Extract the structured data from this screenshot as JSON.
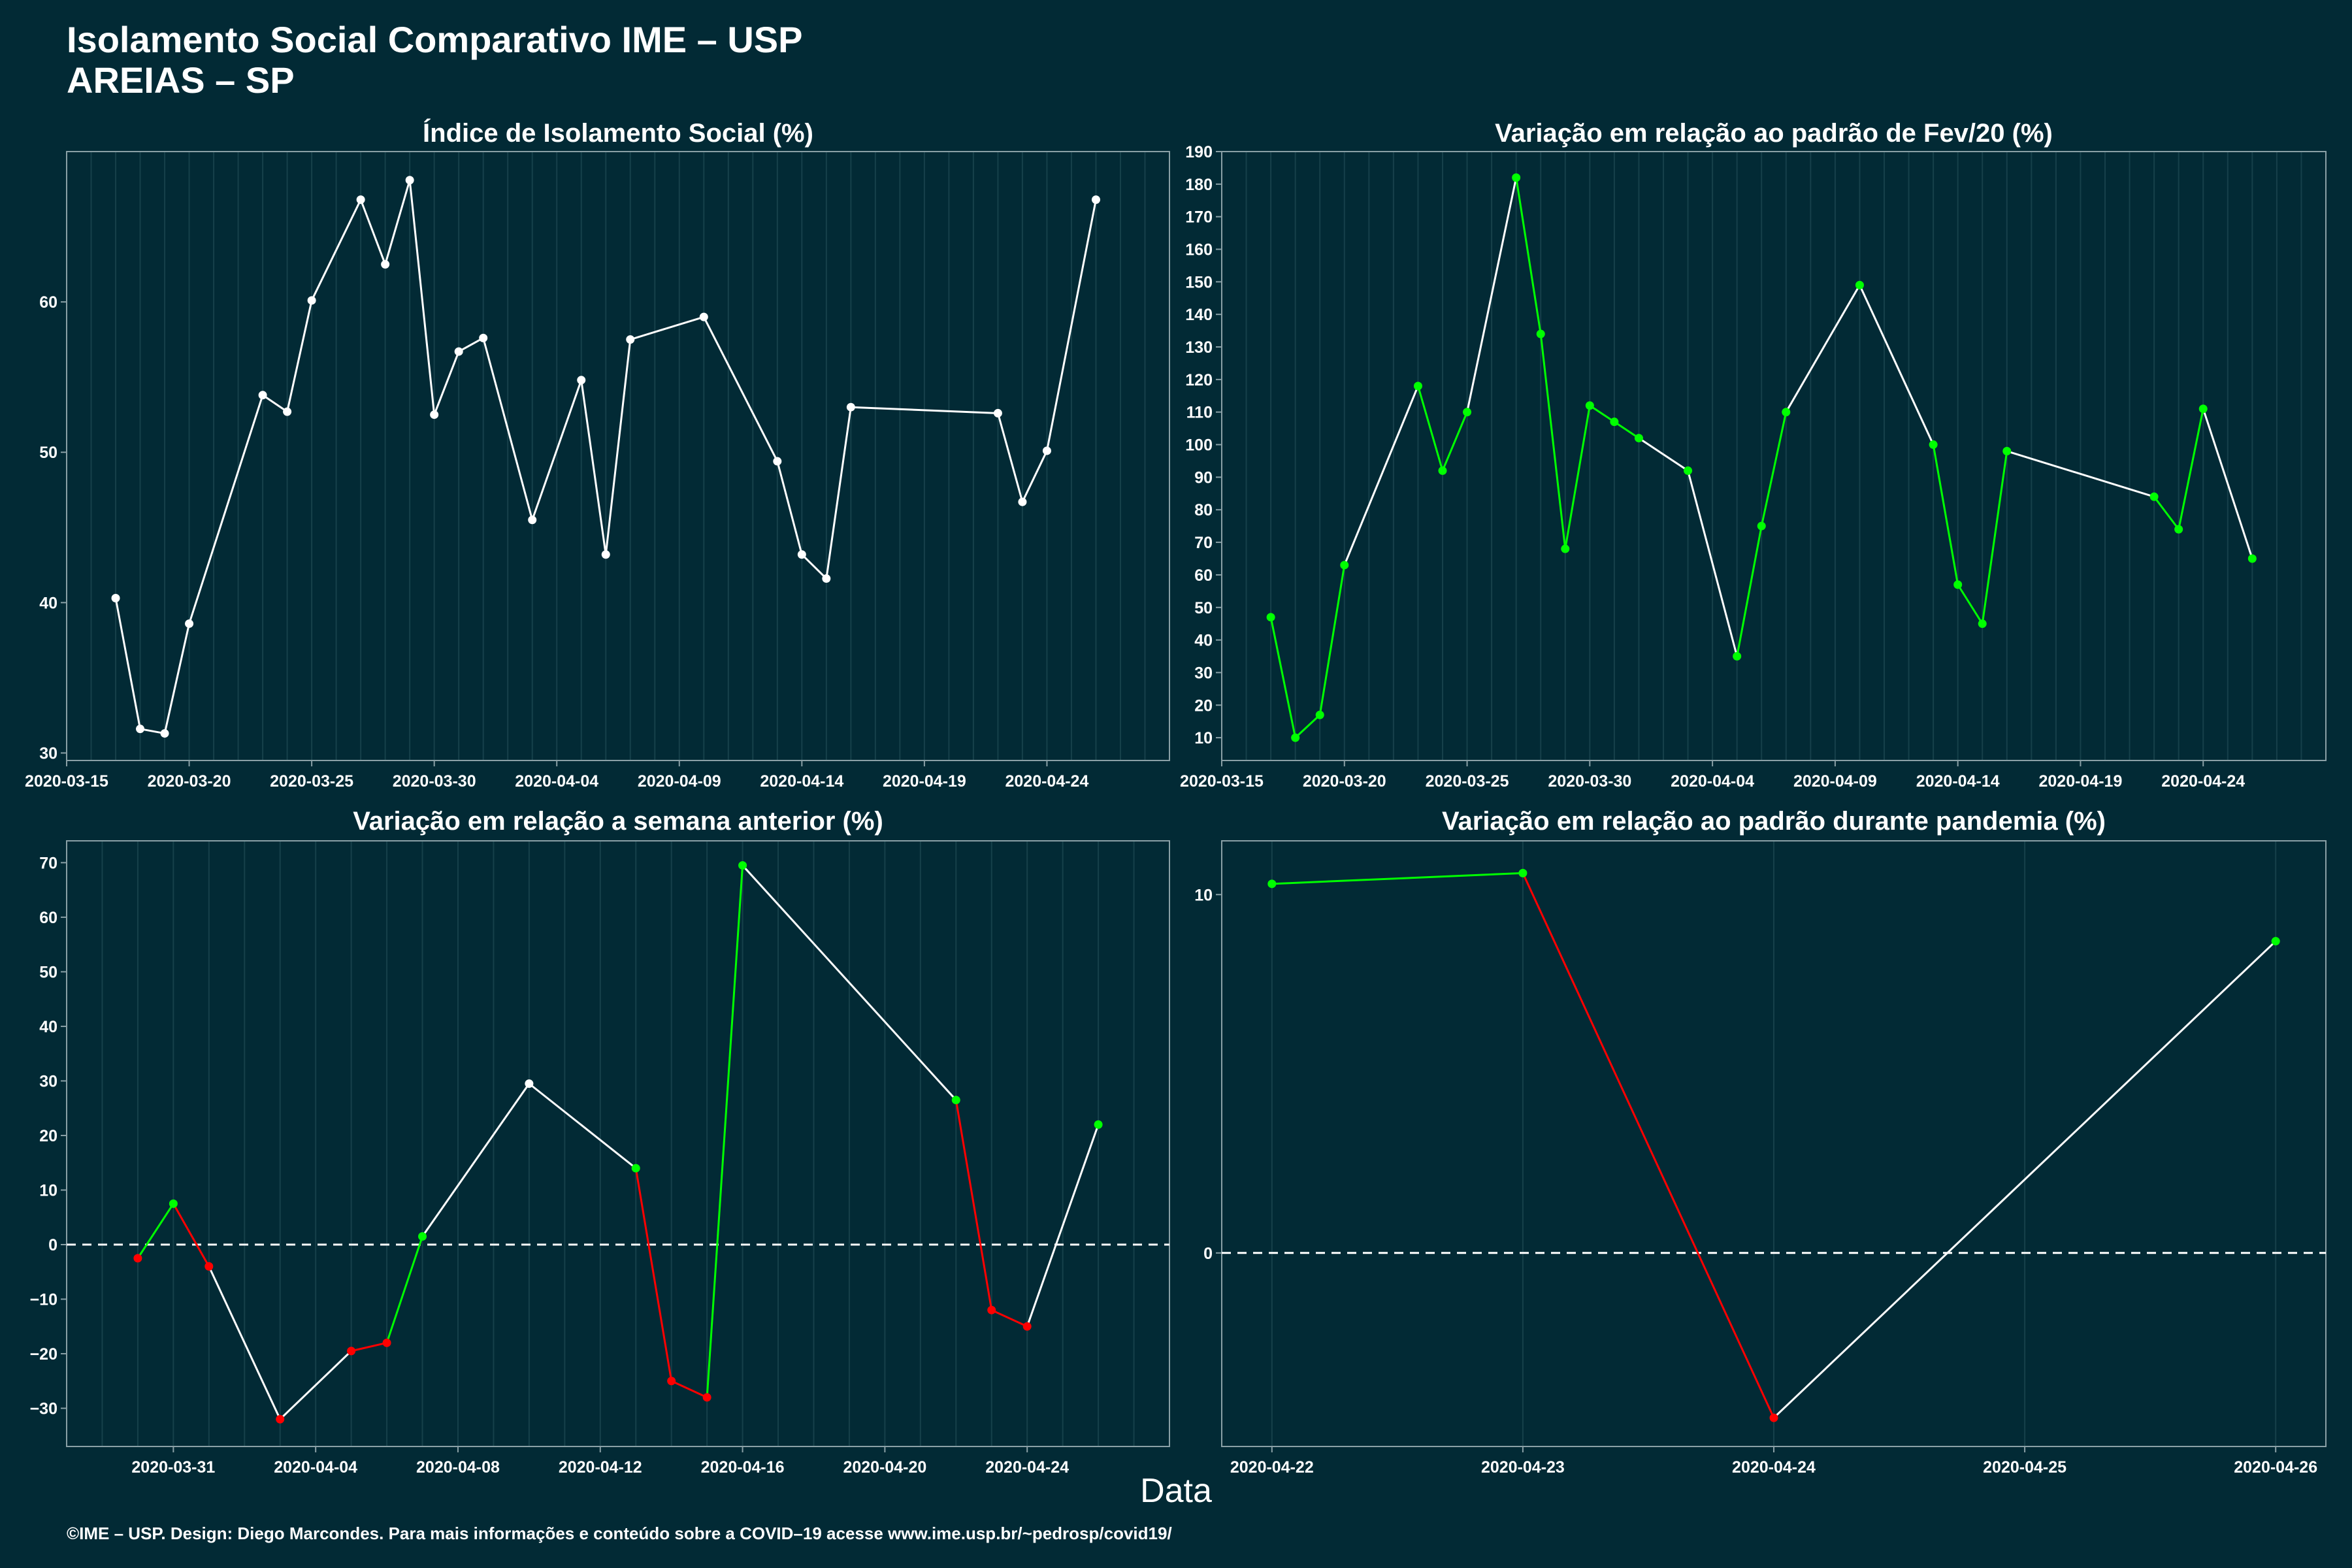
{
  "header": {
    "title_line1": "Isolamento Social Comparativo IME – USP",
    "title_line2": "AREIAS – SP"
  },
  "xaxis_label": "Data",
  "footer": "©IME – USP. Design: Diego Marcondes. Para mais informações e conteúdo sobre a COVID–19 acesse www.ime.usp.br/~pedrosp/covid19/",
  "colors": {
    "background": "#022a35",
    "line": "#ffffff",
    "increase": "#00ff00",
    "decrease": "#ff0000",
    "grid": "#16404a",
    "panel_border": "#8aa0a6"
  },
  "chart_data": [
    {
      "type": "line",
      "title": "Índice de Isolamento Social (%)",
      "xlim": [
        "2020-03-15",
        "2020-04-29"
      ],
      "ylim": [
        29.5,
        70
      ],
      "x_ticks": [
        "2020-03-15",
        "2020-03-20",
        "2020-03-25",
        "2020-03-30",
        "2020-04-04",
        "2020-04-09",
        "2020-04-14",
        "2020-04-19",
        "2020-04-24"
      ],
      "y_ticks": [
        30,
        40,
        50,
        60
      ],
      "grid": true,
      "points": [
        {
          "x": "2020-03-17",
          "y": 40.3,
          "c": "w"
        },
        {
          "x": "2020-03-18",
          "y": 31.6,
          "c": "w"
        },
        {
          "x": "2020-03-19",
          "y": 31.3,
          "c": "w"
        },
        {
          "x": "2020-03-20",
          "y": 38.6,
          "c": "w"
        },
        {
          "x": "2020-03-23",
          "y": 53.8,
          "c": "w"
        },
        {
          "x": "2020-03-24",
          "y": 52.7,
          "c": "w"
        },
        {
          "x": "2020-03-25",
          "y": 60.1,
          "c": "w"
        },
        {
          "x": "2020-03-27",
          "y": 66.8,
          "c": "w"
        },
        {
          "x": "2020-03-28",
          "y": 62.5,
          "c": "w"
        },
        {
          "x": "2020-03-29",
          "y": 68.1,
          "c": "w"
        },
        {
          "x": "2020-03-30",
          "y": 52.5,
          "c": "w"
        },
        {
          "x": "2020-03-31",
          "y": 56.7,
          "c": "w"
        },
        {
          "x": "2020-04-01",
          "y": 57.6,
          "c": "w"
        },
        {
          "x": "2020-04-03",
          "y": 45.5,
          "c": "w"
        },
        {
          "x": "2020-04-05",
          "y": 54.8,
          "c": "w"
        },
        {
          "x": "2020-04-06",
          "y": 43.2,
          "c": "w"
        },
        {
          "x": "2020-04-07",
          "y": 57.5,
          "c": "w"
        },
        {
          "x": "2020-04-10",
          "y": 59.0,
          "c": "w"
        },
        {
          "x": "2020-04-13",
          "y": 49.4,
          "c": "w"
        },
        {
          "x": "2020-04-14",
          "y": 43.2,
          "c": "w"
        },
        {
          "x": "2020-04-15",
          "y": 41.6,
          "c": "w"
        },
        {
          "x": "2020-04-16",
          "y": 53.0,
          "c": "w"
        },
        {
          "x": "2020-04-22",
          "y": 52.6,
          "c": "w"
        },
        {
          "x": "2020-04-23",
          "y": 46.7,
          "c": "w"
        },
        {
          "x": "2020-04-24",
          "y": 50.1,
          "c": "w"
        },
        {
          "x": "2020-04-26",
          "y": 66.8,
          "c": "w"
        }
      ]
    },
    {
      "type": "line",
      "title": "Variação em relação ao padrão de Fev/20 (%)",
      "xlim": [
        "2020-03-15",
        "2020-04-29"
      ],
      "ylim": [
        3,
        190
      ],
      "x_ticks": [
        "2020-03-15",
        "2020-03-20",
        "2020-03-25",
        "2020-03-30",
        "2020-04-04",
        "2020-04-09",
        "2020-04-14",
        "2020-04-19",
        "2020-04-24"
      ],
      "y_ticks": [
        10,
        20,
        30,
        40,
        50,
        60,
        70,
        80,
        90,
        100,
        110,
        120,
        130,
        140,
        150,
        160,
        170,
        180,
        190
      ],
      "grid": true,
      "points": [
        {
          "x": "2020-03-17",
          "y": 47,
          "c": "g"
        },
        {
          "x": "2020-03-18",
          "y": 10,
          "c": "g"
        },
        {
          "x": "2020-03-19",
          "y": 17,
          "c": "g"
        },
        {
          "x": "2020-03-20",
          "y": 63,
          "c": "g"
        },
        {
          "x": "2020-03-23",
          "y": 118,
          "c": "g"
        },
        {
          "x": "2020-03-24",
          "y": 92,
          "c": "g"
        },
        {
          "x": "2020-03-25",
          "y": 110,
          "c": "g"
        },
        {
          "x": "2020-03-27",
          "y": 182,
          "c": "g"
        },
        {
          "x": "2020-03-28",
          "y": 134,
          "c": "g"
        },
        {
          "x": "2020-03-29",
          "y": 68,
          "c": "g"
        },
        {
          "x": "2020-03-30",
          "y": 112,
          "c": "g"
        },
        {
          "x": "2020-03-31",
          "y": 107,
          "c": "g"
        },
        {
          "x": "2020-04-01",
          "y": 102,
          "c": "g"
        },
        {
          "x": "2020-04-03",
          "y": 92,
          "c": "g"
        },
        {
          "x": "2020-04-05",
          "y": 35,
          "c": "g"
        },
        {
          "x": "2020-04-06",
          "y": 75,
          "c": "g"
        },
        {
          "x": "2020-04-07",
          "y": 110,
          "c": "g"
        },
        {
          "x": "2020-04-10",
          "y": 149,
          "c": "g"
        },
        {
          "x": "2020-04-13",
          "y": 100,
          "c": "g"
        },
        {
          "x": "2020-04-14",
          "y": 57,
          "c": "g"
        },
        {
          "x": "2020-04-15",
          "y": 45,
          "c": "g"
        },
        {
          "x": "2020-04-16",
          "y": 98,
          "c": "g"
        },
        {
          "x": "2020-04-22",
          "y": 84,
          "c": "g"
        },
        {
          "x": "2020-04-23",
          "y": 74,
          "c": "g"
        },
        {
          "x": "2020-04-24",
          "y": 111,
          "c": "g"
        },
        {
          "x": "2020-04-26",
          "y": 65,
          "c": "g"
        }
      ],
      "segments": [
        "g",
        "g",
        "g",
        "w",
        "g",
        "g",
        "w",
        "g",
        "g",
        "g",
        "g",
        "g",
        "w",
        "w",
        "g",
        "g",
        "w",
        "w",
        "g",
        "g",
        "g",
        "w",
        "g",
        "g",
        "w"
      ]
    },
    {
      "type": "line",
      "title": "Variação em relação a semana anterior (%)",
      "xlim": [
        "2020-03-28",
        "2020-04-28"
      ],
      "ylim": [
        -37,
        74
      ],
      "x_ticks": [
        "2020-03-31",
        "2020-04-04",
        "2020-04-08",
        "2020-04-12",
        "2020-04-16",
        "2020-04-20",
        "2020-04-24"
      ],
      "y_ticks": [
        -30,
        -20,
        -10,
        0,
        10,
        20,
        30,
        40,
        50,
        60,
        70
      ],
      "grid": true,
      "reference_line": 0,
      "points": [
        {
          "x": "2020-03-30",
          "y": -2.5,
          "c": "r"
        },
        {
          "x": "2020-03-31",
          "y": 7.5,
          "c": "g"
        },
        {
          "x": "2020-04-01",
          "y": -4,
          "c": "r"
        },
        {
          "x": "2020-04-03",
          "y": -32,
          "c": "r"
        },
        {
          "x": "2020-04-05",
          "y": -19.5,
          "c": "r"
        },
        {
          "x": "2020-04-06",
          "y": -18,
          "c": "r"
        },
        {
          "x": "2020-04-07",
          "y": 1.5,
          "c": "g"
        },
        {
          "x": "2020-04-10",
          "y": 29.5,
          "c": "w"
        },
        {
          "x": "2020-04-13",
          "y": 14,
          "c": "g"
        },
        {
          "x": "2020-04-14",
          "y": -25,
          "c": "r"
        },
        {
          "x": "2020-04-15",
          "y": -28,
          "c": "r"
        },
        {
          "x": "2020-04-16",
          "y": 69.5,
          "c": "g"
        },
        {
          "x": "2020-04-22",
          "y": 26.5,
          "c": "g"
        },
        {
          "x": "2020-04-23",
          "y": -12,
          "c": "r"
        },
        {
          "x": "2020-04-24",
          "y": -15,
          "c": "r"
        },
        {
          "x": "2020-04-26",
          "y": 22,
          "c": "g"
        }
      ],
      "segments": [
        "g",
        "r",
        "w",
        "w",
        "r",
        "g",
        "w",
        "w",
        "r",
        "r",
        "g",
        "w",
        "r",
        "r",
        "w"
      ]
    },
    {
      "type": "line",
      "title": "Variação em relação ao padrão durante pandemia (%)",
      "xlim": [
        "2020-04-21.8",
        "2020-04-26.2"
      ],
      "ylim": [
        -5.4,
        11.5
      ],
      "x_ticks": [
        "2020-04-22",
        "2020-04-23",
        "2020-04-24",
        "2020-04-25",
        "2020-04-26"
      ],
      "y_ticks": [
        0,
        10
      ],
      "grid": true,
      "reference_line": 0,
      "points": [
        {
          "x": "2020-04-22",
          "y": 10.3,
          "c": "g"
        },
        {
          "x": "2020-04-23",
          "y": 10.6,
          "c": "g"
        },
        {
          "x": "2020-04-24",
          "y": -4.6,
          "c": "r"
        },
        {
          "x": "2020-04-26",
          "y": 8.7,
          "c": "g"
        }
      ],
      "segments": [
        "g",
        "r",
        "w"
      ]
    }
  ]
}
